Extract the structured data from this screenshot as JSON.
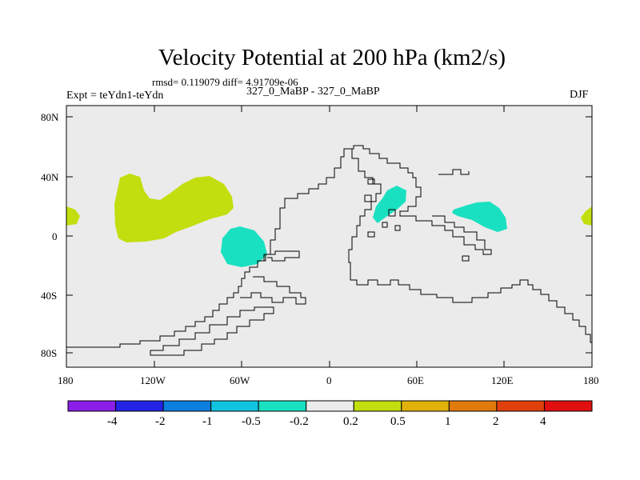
{
  "title": "Velocity Potential at 200 hPa (km2/s)",
  "stats": "rmsd= 0.119079 diff= 4.91709e-06",
  "left_label": "Expt = teYdn1-teYdn",
  "center_label": "327_0_MaBP - 327_0_MaBP",
  "right_label": "DJF",
  "lat_ticks": [
    "80N",
    "40N",
    "0",
    "40S",
    "80S"
  ],
  "lon_ticks": [
    "180",
    "120W",
    "60W",
    "0",
    "60E",
    "120E",
    "180"
  ],
  "colorbar": {
    "labels": [
      "-4",
      "-2",
      "-1",
      "-0.5",
      "-0.2",
      "0.2",
      "0.5",
      "1",
      "2",
      "4"
    ],
    "colors": [
      "#8a1ee8",
      "#2323e6",
      "#0c7ee0",
      "#12c3e0",
      "#19e0c0",
      "#ebebeb",
      "#c2de0e",
      "#e0b20b",
      "#e07a0b",
      "#e0400b",
      "#e01010"
    ]
  },
  "colors": {
    "background": "#ebebeb",
    "positive": "#c2de0e",
    "negative": "#19e0c0"
  }
}
